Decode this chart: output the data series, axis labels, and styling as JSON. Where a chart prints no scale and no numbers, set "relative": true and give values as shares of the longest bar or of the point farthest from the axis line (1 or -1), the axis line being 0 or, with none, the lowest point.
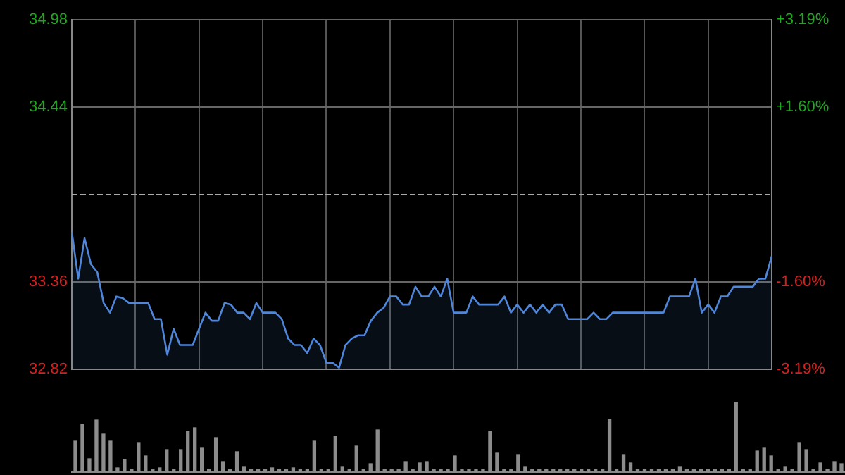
{
  "chart_data": [
    {
      "type": "area",
      "legend": false,
      "grid": true,
      "marker": "none",
      "line_style": "solid",
      "categories": [
        null,
        null,
        null,
        null,
        null,
        null,
        null,
        null,
        null,
        null,
        null,
        null,
        null,
        null,
        null,
        null,
        null,
        null,
        null,
        null,
        null,
        null,
        null,
        null,
        null,
        null,
        null,
        null,
        null,
        null,
        null,
        null,
        null,
        null,
        null,
        null,
        null,
        null,
        null,
        null,
        null,
        null,
        null,
        null,
        null,
        null,
        null,
        null,
        null,
        null,
        null,
        null,
        null,
        null,
        null,
        null,
        null,
        null,
        null,
        null,
        null,
        null,
        null,
        null,
        null,
        null,
        null,
        null,
        null,
        null,
        null,
        null,
        null,
        null,
        null,
        null,
        null,
        null,
        null,
        null,
        null,
        null,
        null,
        null,
        null,
        null,
        null,
        null,
        null,
        null,
        null,
        null,
        null,
        null,
        null,
        null,
        null,
        null,
        null,
        null,
        null,
        null,
        null,
        null,
        null,
        null,
        null,
        null,
        null,
        null,
        null
      ],
      "ylim": [
        32.82,
        34.98
      ],
      "yticks": [
        34.98,
        34.44,
        33.36,
        32.82
      ],
      "y2lim": [
        -3.19,
        3.19
      ],
      "y2ticks": [
        {
          "value": 3.19,
          "label": "+3.19%"
        },
        {
          "value": 1.6,
          "label": "+1.60%"
        },
        {
          "value": -1.6,
          "label": "-1.60%"
        },
        {
          "value": -3.19,
          "label": "-3.19%"
        }
      ],
      "ref_lines": [
        {
          "axis": "y",
          "value": 33.9,
          "color": "#aaaaaa",
          "line_style": "dashed"
        }
      ],
      "series": [
        {
          "color": "#4f86d9",
          "values": [
            33.67,
            33.38,
            33.63,
            33.47,
            33.42,
            33.23,
            33.17,
            33.27,
            33.26,
            33.23,
            33.23,
            33.23,
            33.23,
            33.13,
            33.13,
            32.91,
            33.07,
            32.97,
            32.97,
            32.97,
            33.07,
            33.17,
            33.12,
            33.12,
            33.23,
            33.22,
            33.17,
            33.17,
            33.13,
            33.23,
            33.17,
            33.17,
            33.17,
            33.13,
            33.01,
            32.97,
            32.97,
            32.92,
            33.01,
            32.97,
            32.86,
            32.86,
            32.83,
            32.97,
            33.01,
            33.03,
            33.03,
            33.12,
            33.17,
            33.2,
            33.27,
            33.27,
            33.22,
            33.22,
            33.33,
            33.27,
            33.27,
            33.33,
            33.27,
            33.38,
            33.17,
            33.17,
            33.17,
            33.27,
            33.22,
            33.22,
            33.22,
            33.22,
            33.27,
            33.17,
            33.22,
            33.17,
            33.22,
            33.17,
            33.22,
            33.17,
            33.22,
            33.22,
            33.13,
            33.13,
            33.13,
            33.13,
            33.17,
            33.13,
            33.13,
            33.17,
            33.17,
            33.17,
            33.17,
            33.17,
            33.17,
            33.17,
            33.17,
            33.17,
            33.27,
            33.27,
            33.27,
            33.27,
            33.38,
            33.17,
            33.22,
            33.17,
            33.27,
            33.27,
            33.33,
            33.33,
            33.33,
            33.33,
            33.38,
            33.38,
            33.52
          ]
        }
      ]
    },
    {
      "type": "bar",
      "relative": true,
      "legend": false,
      "categories": [
        null,
        null,
        null,
        null,
        null,
        null,
        null,
        null,
        null,
        null,
        null,
        null,
        null,
        null,
        null,
        null,
        null,
        null,
        null,
        null,
        null,
        null,
        null,
        null,
        null,
        null,
        null,
        null,
        null,
        null,
        null,
        null,
        null,
        null,
        null,
        null,
        null,
        null,
        null,
        null,
        null,
        null,
        null,
        null,
        null,
        null,
        null,
        null,
        null,
        null,
        null,
        null,
        null,
        null,
        null,
        null,
        null,
        null,
        null,
        null,
        null,
        null,
        null,
        null,
        null,
        null,
        null,
        null,
        null,
        null,
        null,
        null,
        null,
        null,
        null,
        null,
        null,
        null,
        null,
        null,
        null,
        null,
        null,
        null,
        null,
        null,
        null,
        null,
        null,
        null,
        null,
        null,
        null,
        null,
        null,
        null,
        null,
        null,
        null,
        null,
        null,
        null,
        null,
        null,
        null,
        null,
        null,
        null,
        null,
        null
      ],
      "series": [
        {
          "color": "#8c8c8c",
          "values": [
            0.44,
            0.68,
            0.19,
            0.74,
            0.54,
            0.44,
            0.06,
            0.18,
            0.04,
            0.42,
            0.23,
            0.04,
            0.06,
            0.32,
            0.04,
            0.32,
            0.58,
            0.63,
            0.35,
            0.04,
            0.49,
            0.15,
            0.04,
            0.29,
            0.08,
            0.04,
            0.04,
            0.04,
            0.06,
            0.04,
            0.04,
            0.06,
            0.04,
            0.04,
            0.44,
            0.04,
            0.04,
            0.51,
            0.08,
            0.04,
            0.37,
            0.04,
            0.12,
            0.6,
            0.04,
            0.04,
            0.04,
            0.15,
            0.04,
            0.13,
            0.15,
            0.04,
            0.04,
            0.04,
            0.23,
            0.04,
            0.04,
            0.04,
            0.04,
            0.58,
            0.27,
            0.04,
            0.04,
            0.25,
            0.08,
            0.04,
            0.04,
            0.04,
            0.04,
            0.04,
            0.04,
            0.04,
            0.04,
            0.04,
            0.04,
            0.04,
            0.75,
            0.04,
            0.25,
            0.13,
            0.04,
            0.04,
            0.04,
            0.04,
            0.04,
            0.04,
            0.08,
            0.04,
            0.04,
            0.04,
            0.04,
            0.04,
            0.04,
            0.04,
            1,
            0.04,
            0.04,
            0.3,
            0.35,
            0.23,
            0.04,
            0.08,
            0.04,
            0.42,
            0.32,
            0.04,
            0.13,
            0.04,
            0.15,
            0.12
          ]
        }
      ]
    }
  ]
}
